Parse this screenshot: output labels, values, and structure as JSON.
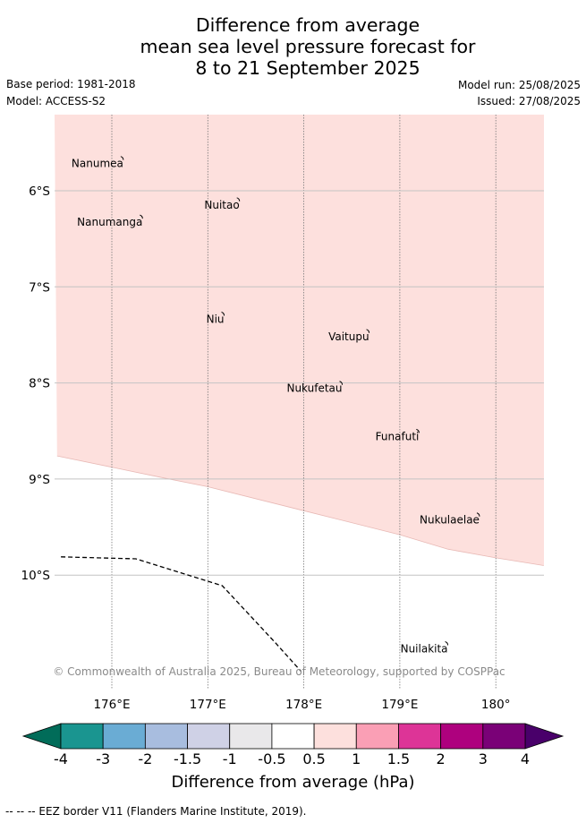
{
  "title": {
    "line1": "Difference from average",
    "line2": "mean sea level pressure forecast for",
    "line3": "8 to 21 September 2025"
  },
  "meta": {
    "base_period": "Base period: 1981-2018",
    "model": "Model: ACCESS-S2",
    "model_run": "Model run: 25/08/2025",
    "issued": "Issued: 27/08/2025"
  },
  "map": {
    "lon_range": [
      175.43,
      180.5
    ],
    "lat_range": [
      -11.2,
      -5.35
    ],
    "lon_ticks": [
      {
        "value": 176,
        "label": "176°E"
      },
      {
        "value": 177,
        "label": "177°E"
      },
      {
        "value": 178,
        "label": "178°E"
      },
      {
        "value": 179,
        "label": "179°E"
      },
      {
        "value": 180,
        "label": "180°"
      }
    ],
    "lat_ticks": [
      {
        "value": -6,
        "label": "6°S"
      },
      {
        "value": -7,
        "label": "7°S"
      },
      {
        "value": -8,
        "label": "8°S"
      },
      {
        "value": -9,
        "label": "9°S"
      },
      {
        "value": -10,
        "label": "10°S"
      }
    ],
    "anomaly_fill_color": "#fde0dd",
    "anomaly_boundary": [
      [
        175.43,
        -8.76
      ],
      [
        176.5,
        -8.98
      ],
      [
        177.0,
        -9.08
      ],
      [
        178.0,
        -9.33
      ],
      [
        179.0,
        -9.58
      ],
      [
        179.5,
        -9.73
      ],
      [
        180.0,
        -9.82
      ],
      [
        180.5,
        -9.9
      ]
    ],
    "eez_border": [
      [
        175.47,
        -9.81
      ],
      [
        176.25,
        -9.83
      ],
      [
        177.15,
        -10.11
      ],
      [
        177.7,
        -10.7
      ],
      [
        177.97,
        -11.0
      ]
    ],
    "places": [
      {
        "name": "Nanumea",
        "lon": 176.12,
        "lat": -5.68
      },
      {
        "name": "Nuitao",
        "lon": 177.33,
        "lat": -6.11
      },
      {
        "name": "Nanumanga",
        "lon": 176.32,
        "lat": -6.29
      },
      {
        "name": "Niu",
        "lon": 177.17,
        "lat": -7.3
      },
      {
        "name": "Vaitupu",
        "lon": 178.68,
        "lat": -7.48
      },
      {
        "name": "Nukufetau",
        "lon": 178.4,
        "lat": -8.02
      },
      {
        "name": "Funafuti",
        "lon": 179.2,
        "lat": -8.52
      },
      {
        "name": "Nukulaelae",
        "lon": 179.83,
        "lat": -9.39
      },
      {
        "name": "Nuilakita",
        "lon": 179.5,
        "lat": -10.73
      }
    ],
    "copyright": "© Commonwealth of Australia 2025, Bureau of Meteorology, supported by COSPPac"
  },
  "colorbar": {
    "label": "Difference from average (hPa)",
    "ticks": [
      "-4",
      "-3",
      "-2",
      "-1.5",
      "-1",
      "-0.5",
      "0.5",
      "1",
      "1.5",
      "2",
      "3",
      "4"
    ],
    "colors": [
      "#1a9590",
      "#6aacd4",
      "#a8bddf",
      "#cfd1e6",
      "#e9e8ea",
      "#ffffff",
      "#fde0dd",
      "#fa9fb5",
      "#dd3497",
      "#ae017e",
      "#7a0177"
    ],
    "under_color": "#016c59",
    "over_color": "#49006a"
  },
  "footer": "-- -- -- EEZ border V11 (Flanders Marine Institute, 2019)."
}
